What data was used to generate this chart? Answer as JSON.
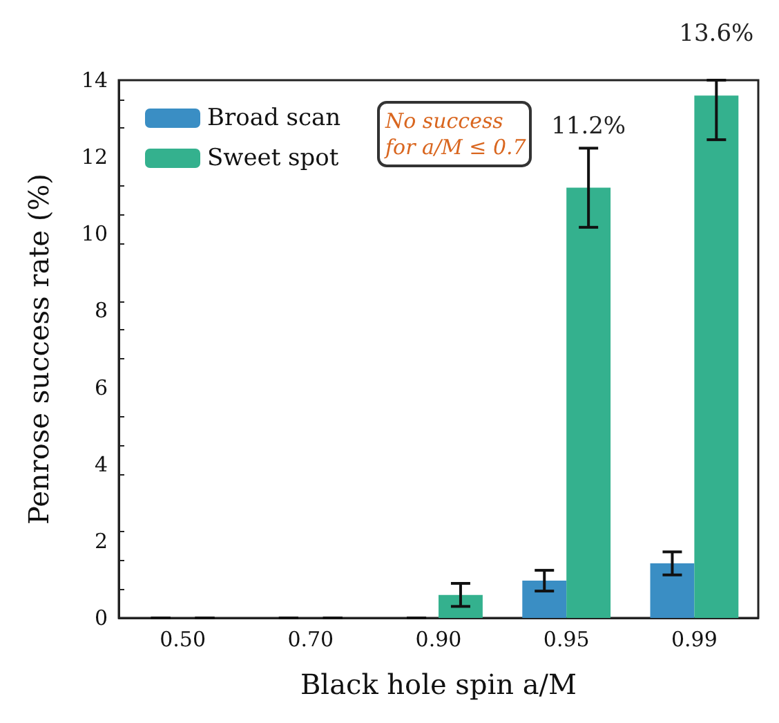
{
  "chart_data": {
    "type": "bar",
    "xlabel": "Black hole spin a/M",
    "ylabel": "Penrose success rate (%)",
    "categories": [
      "0.50",
      "0.70",
      "0.90",
      "0.95",
      "0.99"
    ],
    "series": [
      {
        "name": "Broad scan",
        "color": "#3a8ec4",
        "values": [
          0,
          0,
          0,
          0.97,
          1.42
        ],
        "errors": [
          0,
          0,
          0,
          0.27,
          0.3
        ]
      },
      {
        "name": "Sweet spot",
        "color": "#34b18e",
        "values": [
          0,
          0,
          0.6,
          11.2,
          13.6
        ],
        "errors": [
          0,
          0,
          0.3,
          1.03,
          [
            12.45,
            14
          ]
        ]
      }
    ],
    "ylim": [
      0,
      14
    ],
    "yticks": [
      0,
      2,
      4,
      6,
      8,
      10,
      12,
      14
    ],
    "legend": "top left",
    "grid": false,
    "annotations": [
      {
        "text": "11.2%",
        "x": "0.95",
        "y": 11.2
      },
      {
        "text": "13.6%",
        "x": "0.99",
        "y": 13.6
      },
      "No success for a/M ≤ 0.7"
    ]
  }
}
